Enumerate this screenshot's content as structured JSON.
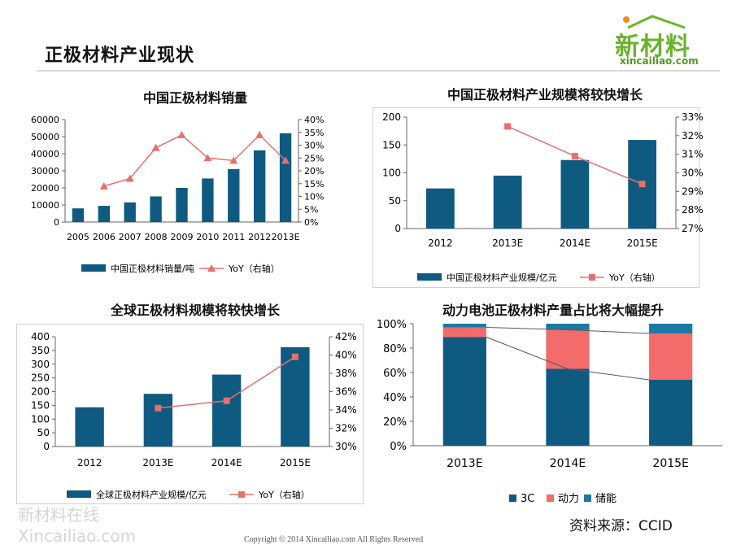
{
  "page": {
    "title": "正极材料产业现状",
    "logo_text": "新材料",
    "logo_url_text": "xincailiao.com",
    "watermark_line1": "新材料在线",
    "watermark_line2": "Xincailiao.com",
    "source": "资料来源：CCID",
    "copyright": "Copyright © 2014   Xincailiao.com    All Rights Reserved",
    "colors": {
      "bar": "#0f5a80",
      "line": "#e8706c",
      "logo_green": "#6ab32e",
      "gray_line": "#595959"
    }
  },
  "chart_data": [
    {
      "type": "bar",
      "title": "中国正极材料销量",
      "categories": [
        "2005",
        "2006",
        "2007",
        "2008",
        "2009",
        "2010",
        "2011",
        "2012",
        "2013E"
      ],
      "series": [
        {
          "name": "中国正极材料销量/吨",
          "kind": "bar",
          "axis": "left",
          "values": [
            8000,
            9500,
            11500,
            15000,
            20000,
            25500,
            31000,
            42000,
            52000
          ]
        },
        {
          "name": "YoY（右轴）",
          "kind": "line",
          "axis": "right",
          "marker": "triangle",
          "values": [
            null,
            14,
            17,
            29,
            34,
            25,
            24,
            34,
            24
          ]
        }
      ],
      "left_axis": {
        "min": 0,
        "max": 60000,
        "ticks": [
          "0",
          "10000",
          "20000",
          "30000",
          "40000",
          "50000",
          "60000"
        ]
      },
      "right_axis": {
        "min": 0,
        "max": 40,
        "ticks": [
          "0%",
          "5%",
          "10%",
          "15%",
          "20%",
          "25%",
          "30%",
          "35%",
          "40%"
        ]
      },
      "legend": "bottom"
    },
    {
      "type": "bar",
      "title": "中国正极材料产业规模将较快增长",
      "categories": [
        "2012",
        "2013E",
        "2014E",
        "2015E"
      ],
      "series": [
        {
          "name": "中国正极材料产业规模/亿元",
          "kind": "bar",
          "axis": "left",
          "values": [
            72,
            95,
            123,
            159
          ]
        },
        {
          "name": "YoY（右轴）",
          "kind": "line",
          "axis": "right",
          "marker": "square",
          "values": [
            null,
            32.5,
            30.9,
            29.4
          ]
        }
      ],
      "left_axis": {
        "min": 0,
        "max": 200,
        "ticks": [
          "0",
          "50",
          "100",
          "150",
          "200"
        ]
      },
      "right_axis": {
        "min": 27,
        "max": 33,
        "ticks": [
          "27%",
          "28%",
          "29%",
          "30%",
          "31%",
          "32%",
          "33%"
        ]
      },
      "legend": "bottom"
    },
    {
      "type": "bar",
      "title": "全球正极材料规模将较快增长",
      "categories": [
        "2012",
        "2013E",
        "2014E",
        "2015E"
      ],
      "series": [
        {
          "name": "全球正极材料产业规模/亿元",
          "kind": "bar",
          "axis": "left",
          "values": [
            143,
            192,
            262,
            362
          ]
        },
        {
          "name": "YoY（右轴）",
          "kind": "line",
          "axis": "right",
          "marker": "square",
          "values": [
            null,
            34.2,
            35.0,
            39.8
          ]
        }
      ],
      "left_axis": {
        "min": 0,
        "max": 400,
        "ticks": [
          "0",
          "50",
          "100",
          "150",
          "200",
          "250",
          "300",
          "350",
          "400"
        ]
      },
      "right_axis": {
        "min": 30,
        "max": 42,
        "ticks": [
          "30%",
          "32%",
          "34%",
          "36%",
          "38%",
          "40%",
          "42%"
        ]
      },
      "legend": "bottom"
    },
    {
      "type": "bar",
      "stacked": true,
      "title": "动力电池正极材料产量占比将大幅提升",
      "categories": [
        "2013E",
        "2014E",
        "2015E"
      ],
      "series": [
        {
          "name": "3C",
          "color": "#0f5a80",
          "values": [
            89,
            63,
            54
          ]
        },
        {
          "name": "动力",
          "color": "#f36b6b",
          "values": [
            8,
            32,
            38
          ]
        },
        {
          "name": "储能",
          "color": "#1a7aa3",
          "values": [
            3,
            5,
            8
          ]
        }
      ],
      "left_axis": {
        "min": 0,
        "max": 100,
        "ticks": [
          "0%",
          "20%",
          "40%",
          "60%",
          "80%",
          "100%"
        ]
      },
      "legend": "bottom"
    }
  ]
}
